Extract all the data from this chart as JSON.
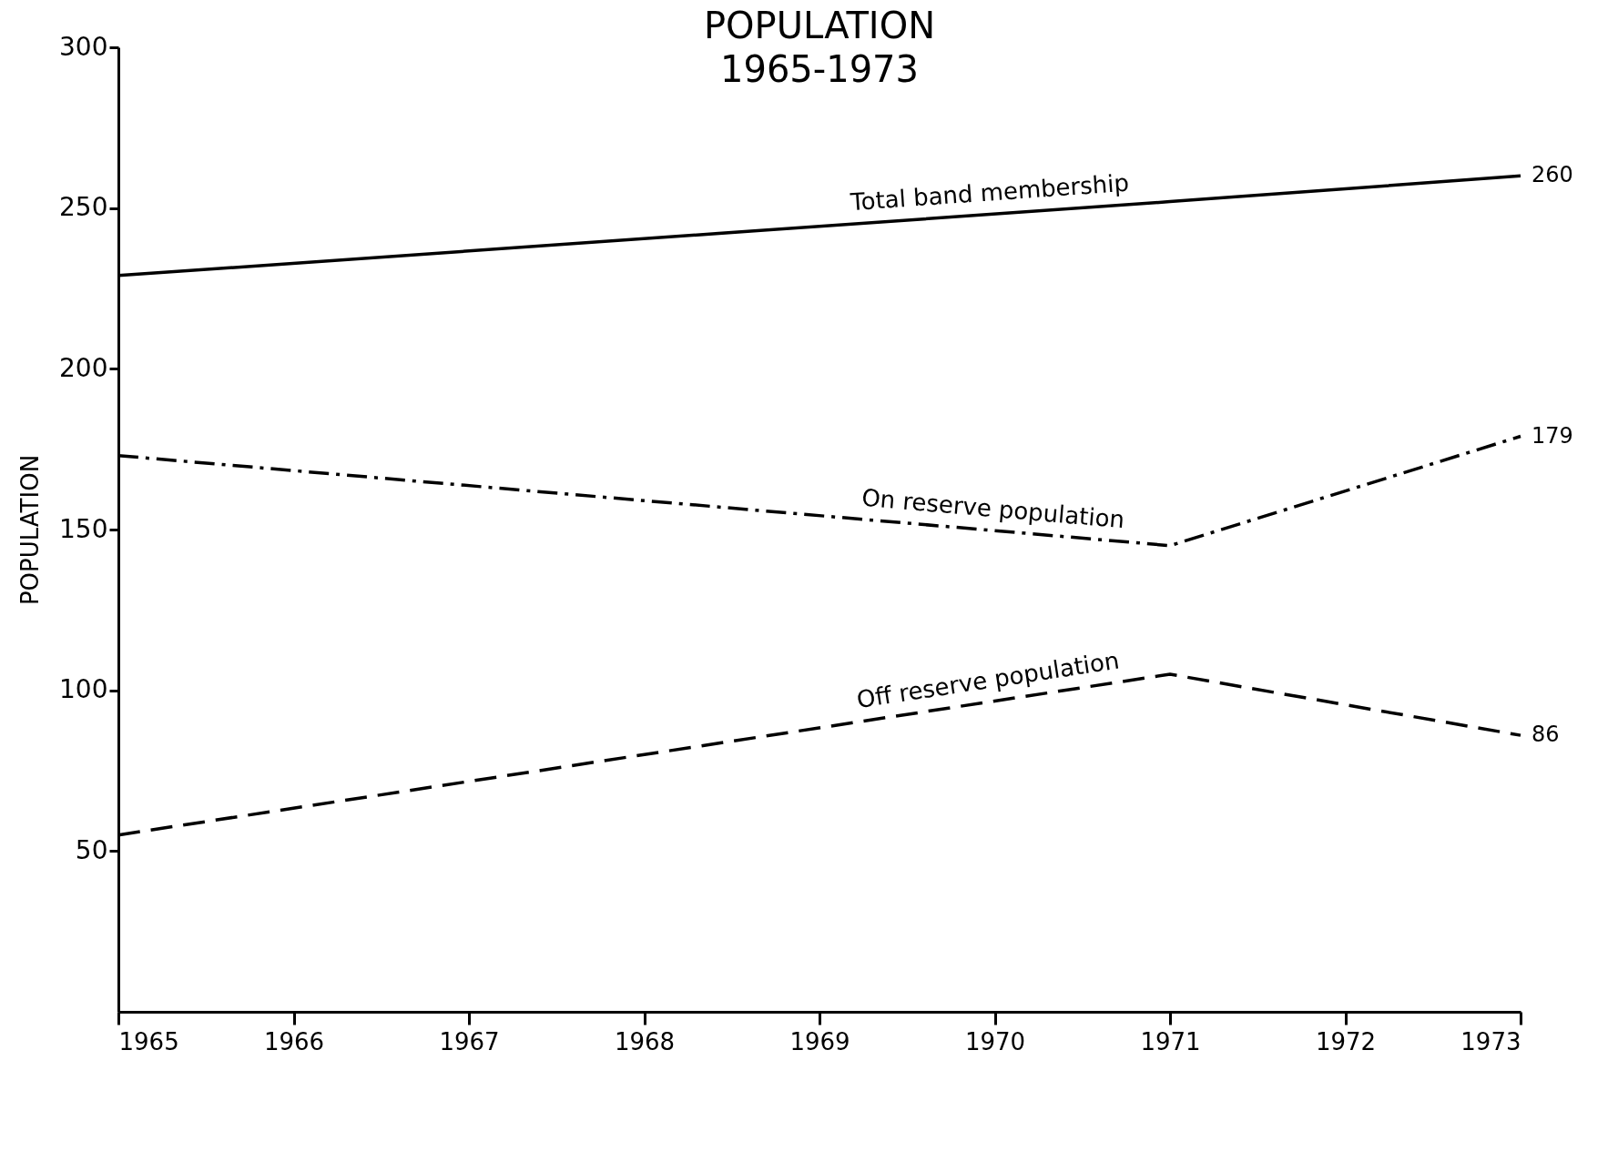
{
  "chart_data": {
    "type": "line",
    "title": "POPULATION",
    "subtitle": "1965-1973",
    "ylabel": "POPULATION",
    "xlim": [
      1965,
      1973
    ],
    "xticks": [
      1965,
      1966,
      1967,
      1968,
      1969,
      1970,
      1971,
      1972,
      1973
    ],
    "ylim": [
      0,
      300
    ],
    "yticks": [
      50,
      100,
      150,
      200,
      250,
      300
    ],
    "grid": false,
    "marker": "none",
    "series": [
      {
        "name": "Total band membership",
        "color": "#000000",
        "line_style": "solid",
        "x": [
          1965,
          1971,
          1973
        ],
        "values": [
          229,
          252,
          260
        ],
        "value_labels": [
          null,
          null,
          "260"
        ]
      },
      {
        "name": "On reserve population",
        "color": "#000000",
        "line_style": "dotted",
        "x": [
          1965,
          1971,
          1973
        ],
        "values": [
          173,
          145,
          179
        ],
        "value_labels": [
          null,
          null,
          "179"
        ]
      },
      {
        "name": "Off reserve population",
        "color": "#000000",
        "line_style": "dashed",
        "x": [
          1965,
          1971,
          1973
        ],
        "values": [
          55,
          105,
          86
        ],
        "value_labels": [
          null,
          null,
          "86"
        ]
      }
    ]
  }
}
